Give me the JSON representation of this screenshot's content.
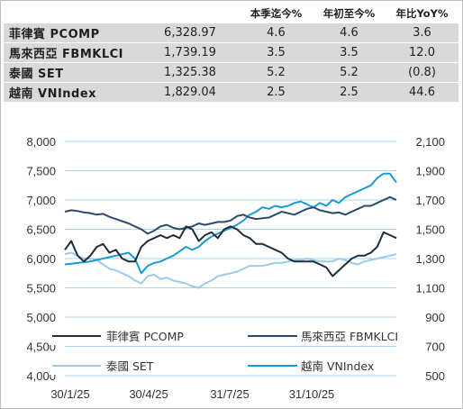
{
  "table": {
    "headers": [
      "",
      "",
      "本季迄今%",
      "年初至今%",
      "年比YoY%"
    ],
    "rows": [
      {
        "name": "菲律賓 PCOMP",
        "level": "6,328.97",
        "qtd": "4.6",
        "ytd": "4.6",
        "yoy": "3.6"
      },
      {
        "name": "馬來西亞 FBMKLCI",
        "level": "1,739.19",
        "qtd": "3.5",
        "ytd": "3.5",
        "yoy": "12.0"
      },
      {
        "name": "泰國 SET",
        "level": "1,325.38",
        "qtd": "5.2",
        "ytd": "5.2",
        "yoy": "(0.8)"
      },
      {
        "name": "越南 VNIndex",
        "level": "1,829.04",
        "qtd": "2.5",
        "ytd": "2.5",
        "yoy": "44.6"
      }
    ]
  },
  "chart_data": {
    "type": "line",
    "x_ticks": [
      "30/1/25",
      "30/4/25",
      "31/7/25",
      "31/10/25"
    ],
    "y_left": {
      "min": 4000,
      "max": 8000,
      "ticks": [
        "8,000",
        "7,500",
        "7,000",
        "6,500",
        "6,000",
        "5,500",
        "5,000",
        "4,500",
        "4,000"
      ]
    },
    "y_right": {
      "min": 500,
      "max": 2100,
      "ticks": [
        "2,100",
        "1,900",
        "1,700",
        "1,500",
        "1,300",
        "1,100",
        "900",
        "700",
        "500"
      ]
    },
    "grid": "horizontal",
    "legend_placement": "bottom",
    "series": [
      {
        "name": "菲律賓 PCOMP",
        "axis": "left",
        "color": "#1f2d3d",
        "values": [
          6150,
          6300,
          6050,
          5950,
          6050,
          6200,
          6250,
          6100,
          6150,
          6000,
          5950,
          5950,
          6200,
          6300,
          6350,
          6400,
          6350,
          6400,
          6350,
          6550,
          6500,
          6300,
          6400,
          6450,
          6350,
          6500,
          6550,
          6500,
          6400,
          6350,
          6250,
          6250,
          6200,
          6150,
          6100,
          6000,
          5950,
          5950,
          5950,
          5950,
          5900,
          5850,
          5700,
          5800,
          5900,
          6000,
          6050,
          6050,
          6100,
          6200,
          6450,
          6400,
          6350
        ]
      },
      {
        "name": "馬來西亞 FBMKLCI",
        "axis": "right",
        "color": "#2c4a6a",
        "values": [
          1620,
          1630,
          1625,
          1615,
          1610,
          1600,
          1605,
          1585,
          1570,
          1555,
          1540,
          1520,
          1500,
          1470,
          1490,
          1520,
          1530,
          1510,
          1500,
          1510,
          1520,
          1540,
          1530,
          1540,
          1550,
          1550,
          1560,
          1590,
          1600,
          1580,
          1570,
          1575,
          1580,
          1600,
          1620,
          1610,
          1600,
          1620,
          1640,
          1650,
          1630,
          1620,
          1610,
          1615,
          1600,
          1620,
          1640,
          1660,
          1660,
          1680,
          1700,
          1720,
          1700
        ]
      },
      {
        "name": "泰國 SET",
        "axis": "right",
        "color": "#9ccbe6",
        "values": [
          1330,
          1340,
          1320,
          1300,
          1300,
          1290,
          1260,
          1230,
          1220,
          1200,
          1180,
          1150,
          1130,
          1180,
          1190,
          1160,
          1170,
          1150,
          1140,
          1130,
          1110,
          1100,
          1130,
          1150,
          1180,
          1190,
          1200,
          1210,
          1230,
          1250,
          1250,
          1250,
          1260,
          1270,
          1270,
          1280,
          1290,
          1290,
          1300,
          1290,
          1280,
          1280,
          1280,
          1300,
          1290,
          1270,
          1260,
          1280,
          1290,
          1300,
          1310,
          1320,
          1330
        ]
      },
      {
        "name": "越南 VNIndex",
        "axis": "right",
        "color": "#1a9ad6",
        "values": [
          1260,
          1265,
          1270,
          1275,
          1280,
          1290,
          1300,
          1310,
          1320,
          1330,
          1340,
          1300,
          1200,
          1250,
          1270,
          1280,
          1300,
          1320,
          1350,
          1380,
          1360,
          1380,
          1420,
          1450,
          1470,
          1490,
          1510,
          1530,
          1560,
          1600,
          1620,
          1650,
          1640,
          1660,
          1650,
          1660,
          1680,
          1690,
          1670,
          1650,
          1680,
          1660,
          1700,
          1680,
          1720,
          1740,
          1760,
          1780,
          1800,
          1850,
          1880,
          1880,
          1820
        ]
      }
    ]
  }
}
